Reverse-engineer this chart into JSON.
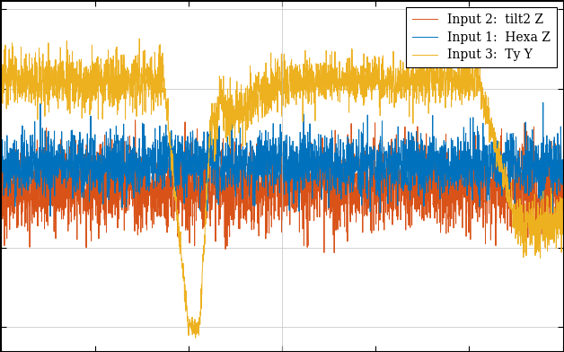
{
  "title": "",
  "legend_labels": [
    "Input 1:  Hexa Z",
    "Input 2:  tilt2 Z",
    "Input 3:  Ty Y"
  ],
  "line_colors": [
    "#0072BD",
    "#D95319",
    "#EDB120"
  ],
  "background_color": "#FFFFFF",
  "outer_background": "#000000",
  "grid_color": "#C0C0C0",
  "linewidth": 0.7,
  "seed": 42,
  "n_points": 3000,
  "xlim": [
    0,
    3000
  ],
  "ylim": [
    -1.15,
    1.05
  ],
  "figsize": [
    6.28,
    3.92
  ],
  "dpi": 100,
  "legend_fontsize": 10
}
